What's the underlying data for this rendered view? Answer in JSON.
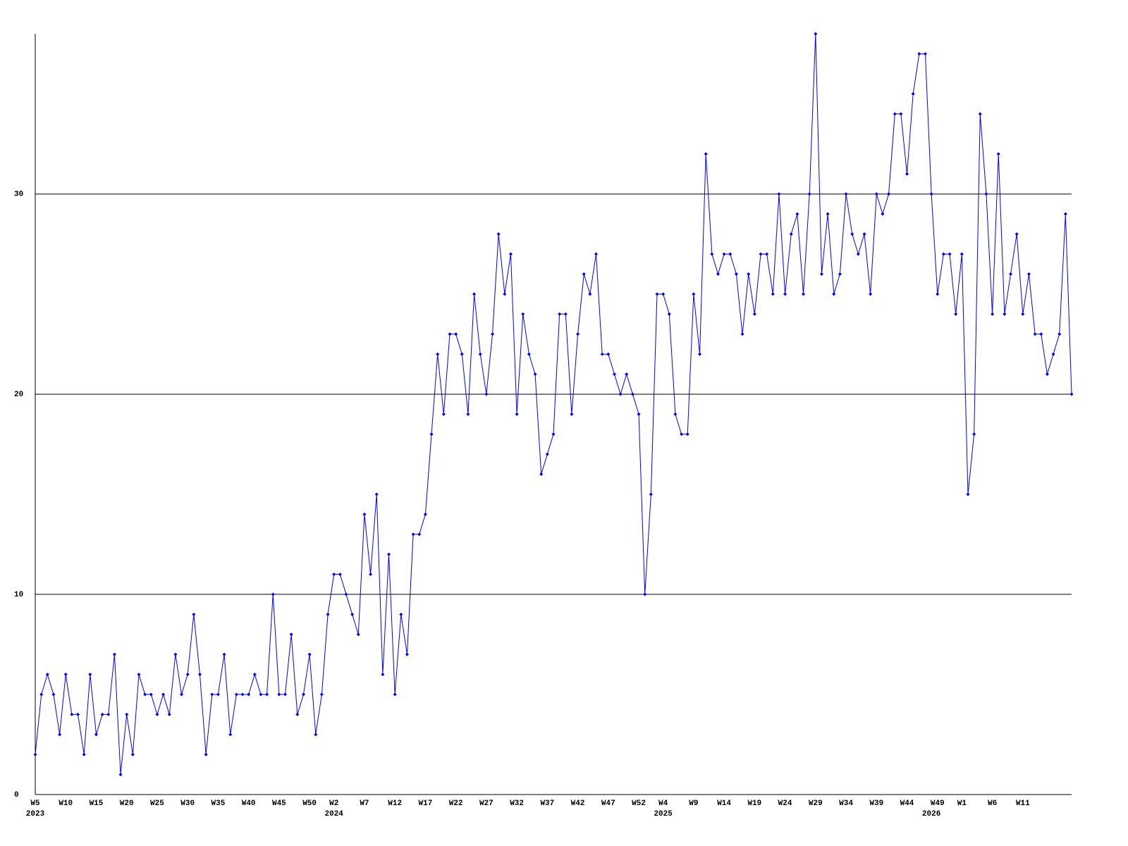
{
  "chart_data": {
    "type": "line",
    "categories": [
      "W5",
      null,
      null,
      null,
      null,
      "W10",
      null,
      null,
      null,
      null,
      "W15",
      null,
      null,
      null,
      null,
      "W20",
      null,
      null,
      null,
      null,
      "W25",
      null,
      null,
      null,
      null,
      "W30",
      null,
      null,
      null,
      null,
      "W35",
      null,
      null,
      null,
      null,
      "W40",
      null,
      null,
      null,
      null,
      "W45",
      null,
      null,
      null,
      null,
      "W50",
      null,
      null,
      null,
      "W2",
      null,
      null,
      null,
      null,
      "W7",
      null,
      null,
      null,
      null,
      "W12",
      null,
      null,
      null,
      null,
      "W17",
      null,
      null,
      null,
      null,
      "W22",
      null,
      null,
      null,
      null,
      "W27",
      null,
      null,
      null,
      null,
      "W32",
      null,
      null,
      null,
      null,
      "W37",
      null,
      null,
      null,
      null,
      "W42",
      null,
      null,
      null,
      null,
      "W47",
      null,
      null,
      null,
      null,
      "W52",
      null,
      null,
      null,
      "W4",
      null,
      null,
      null,
      null,
      "W9",
      null,
      null,
      null,
      null,
      "W14",
      null,
      null,
      null,
      null,
      "W19",
      null,
      null,
      null,
      null,
      "W24",
      null,
      null,
      null,
      null,
      "W29",
      null,
      null,
      null,
      null,
      "W34",
      null,
      null,
      null,
      null,
      "W39",
      null,
      null,
      null,
      null,
      "W44",
      null,
      null,
      null,
      null,
      "W49",
      null,
      null,
      null,
      "W1",
      null,
      null,
      null,
      null,
      "W6",
      null,
      null,
      null,
      null,
      "W11",
      null,
      null,
      null,
      null,
      null,
      null,
      null,
      null
    ],
    "years": [
      "2023",
      null,
      null,
      null,
      null,
      null,
      null,
      null,
      null,
      null,
      null,
      null,
      null,
      null,
      null,
      null,
      null,
      null,
      null,
      null,
      null,
      null,
      null,
      null,
      null,
      null,
      null,
      null,
      null,
      null,
      null,
      null,
      null,
      null,
      null,
      null,
      null,
      null,
      null,
      null,
      null,
      null,
      null,
      null,
      null,
      null,
      null,
      null,
      null,
      "2024",
      null,
      null,
      null,
      null,
      null,
      null,
      null,
      null,
      null,
      null,
      null,
      null,
      null,
      null,
      null,
      null,
      null,
      null,
      null,
      null,
      null,
      null,
      null,
      null,
      null,
      null,
      null,
      null,
      null,
      null,
      null,
      null,
      null,
      null,
      null,
      null,
      null,
      null,
      null,
      null,
      null,
      null,
      null,
      null,
      null,
      null,
      null,
      null,
      null,
      null,
      null,
      null,
      null,
      "2025",
      null,
      null,
      null,
      null,
      null,
      null,
      null,
      null,
      null,
      null,
      null,
      null,
      null,
      null,
      null,
      null,
      null,
      null,
      null,
      null,
      null,
      null,
      null,
      null,
      null,
      null,
      null,
      null,
      null,
      null,
      null,
      null,
      null,
      null,
      null,
      null,
      null,
      null,
      null,
      null,
      null,
      null,
      null,
      "2026",
      null,
      null,
      null,
      null,
      null,
      null,
      null,
      null,
      null,
      null,
      null,
      null,
      null,
      null,
      null,
      null,
      null,
      null
    ],
    "series": [
      {
        "color": "#0000ff",
        "values": [
          2,
          5,
          6,
          5,
          3,
          6,
          4,
          4,
          2,
          6,
          3,
          4,
          4,
          7,
          1,
          4,
          2,
          6,
          5,
          5,
          4,
          5,
          4,
          7,
          5,
          6,
          9,
          6,
          2,
          5,
          5,
          7,
          3,
          5,
          5,
          5,
          6,
          5,
          5,
          10,
          5,
          5,
          8,
          4,
          5,
          7,
          3,
          5,
          9,
          11,
          11,
          10,
          9,
          8,
          14,
          11,
          15,
          6,
          12,
          5,
          9,
          7,
          13,
          13,
          14,
          18,
          22,
          19,
          23,
          23,
          22,
          19,
          25,
          22,
          20,
          23,
          28,
          25,
          27,
          19,
          24,
          22,
          21,
          16,
          17,
          18,
          24,
          24,
          19,
          23,
          26,
          25,
          27,
          22,
          22,
          21,
          20,
          21,
          20,
          19,
          10,
          15,
          25,
          25,
          24,
          19,
          18,
          18,
          25,
          22,
          32,
          27,
          26,
          27,
          27,
          26,
          23,
          26,
          24,
          27,
          27,
          25,
          30,
          25,
          28,
          29,
          25,
          30,
          38,
          26,
          29,
          25,
          26,
          30,
          28,
          27,
          28,
          25,
          30,
          29,
          30,
          34,
          34,
          31,
          35,
          37,
          37,
          30,
          25,
          27,
          27,
          24,
          27,
          15,
          18,
          34,
          30,
          24,
          32,
          24,
          26,
          28,
          24,
          26,
          23,
          23,
          21,
          22,
          23,
          29,
          20
        ]
      }
    ],
    "ylim": [
      0,
      38
    ],
    "yticks": [
      0,
      10,
      20,
      30
    ],
    "grid": true
  }
}
